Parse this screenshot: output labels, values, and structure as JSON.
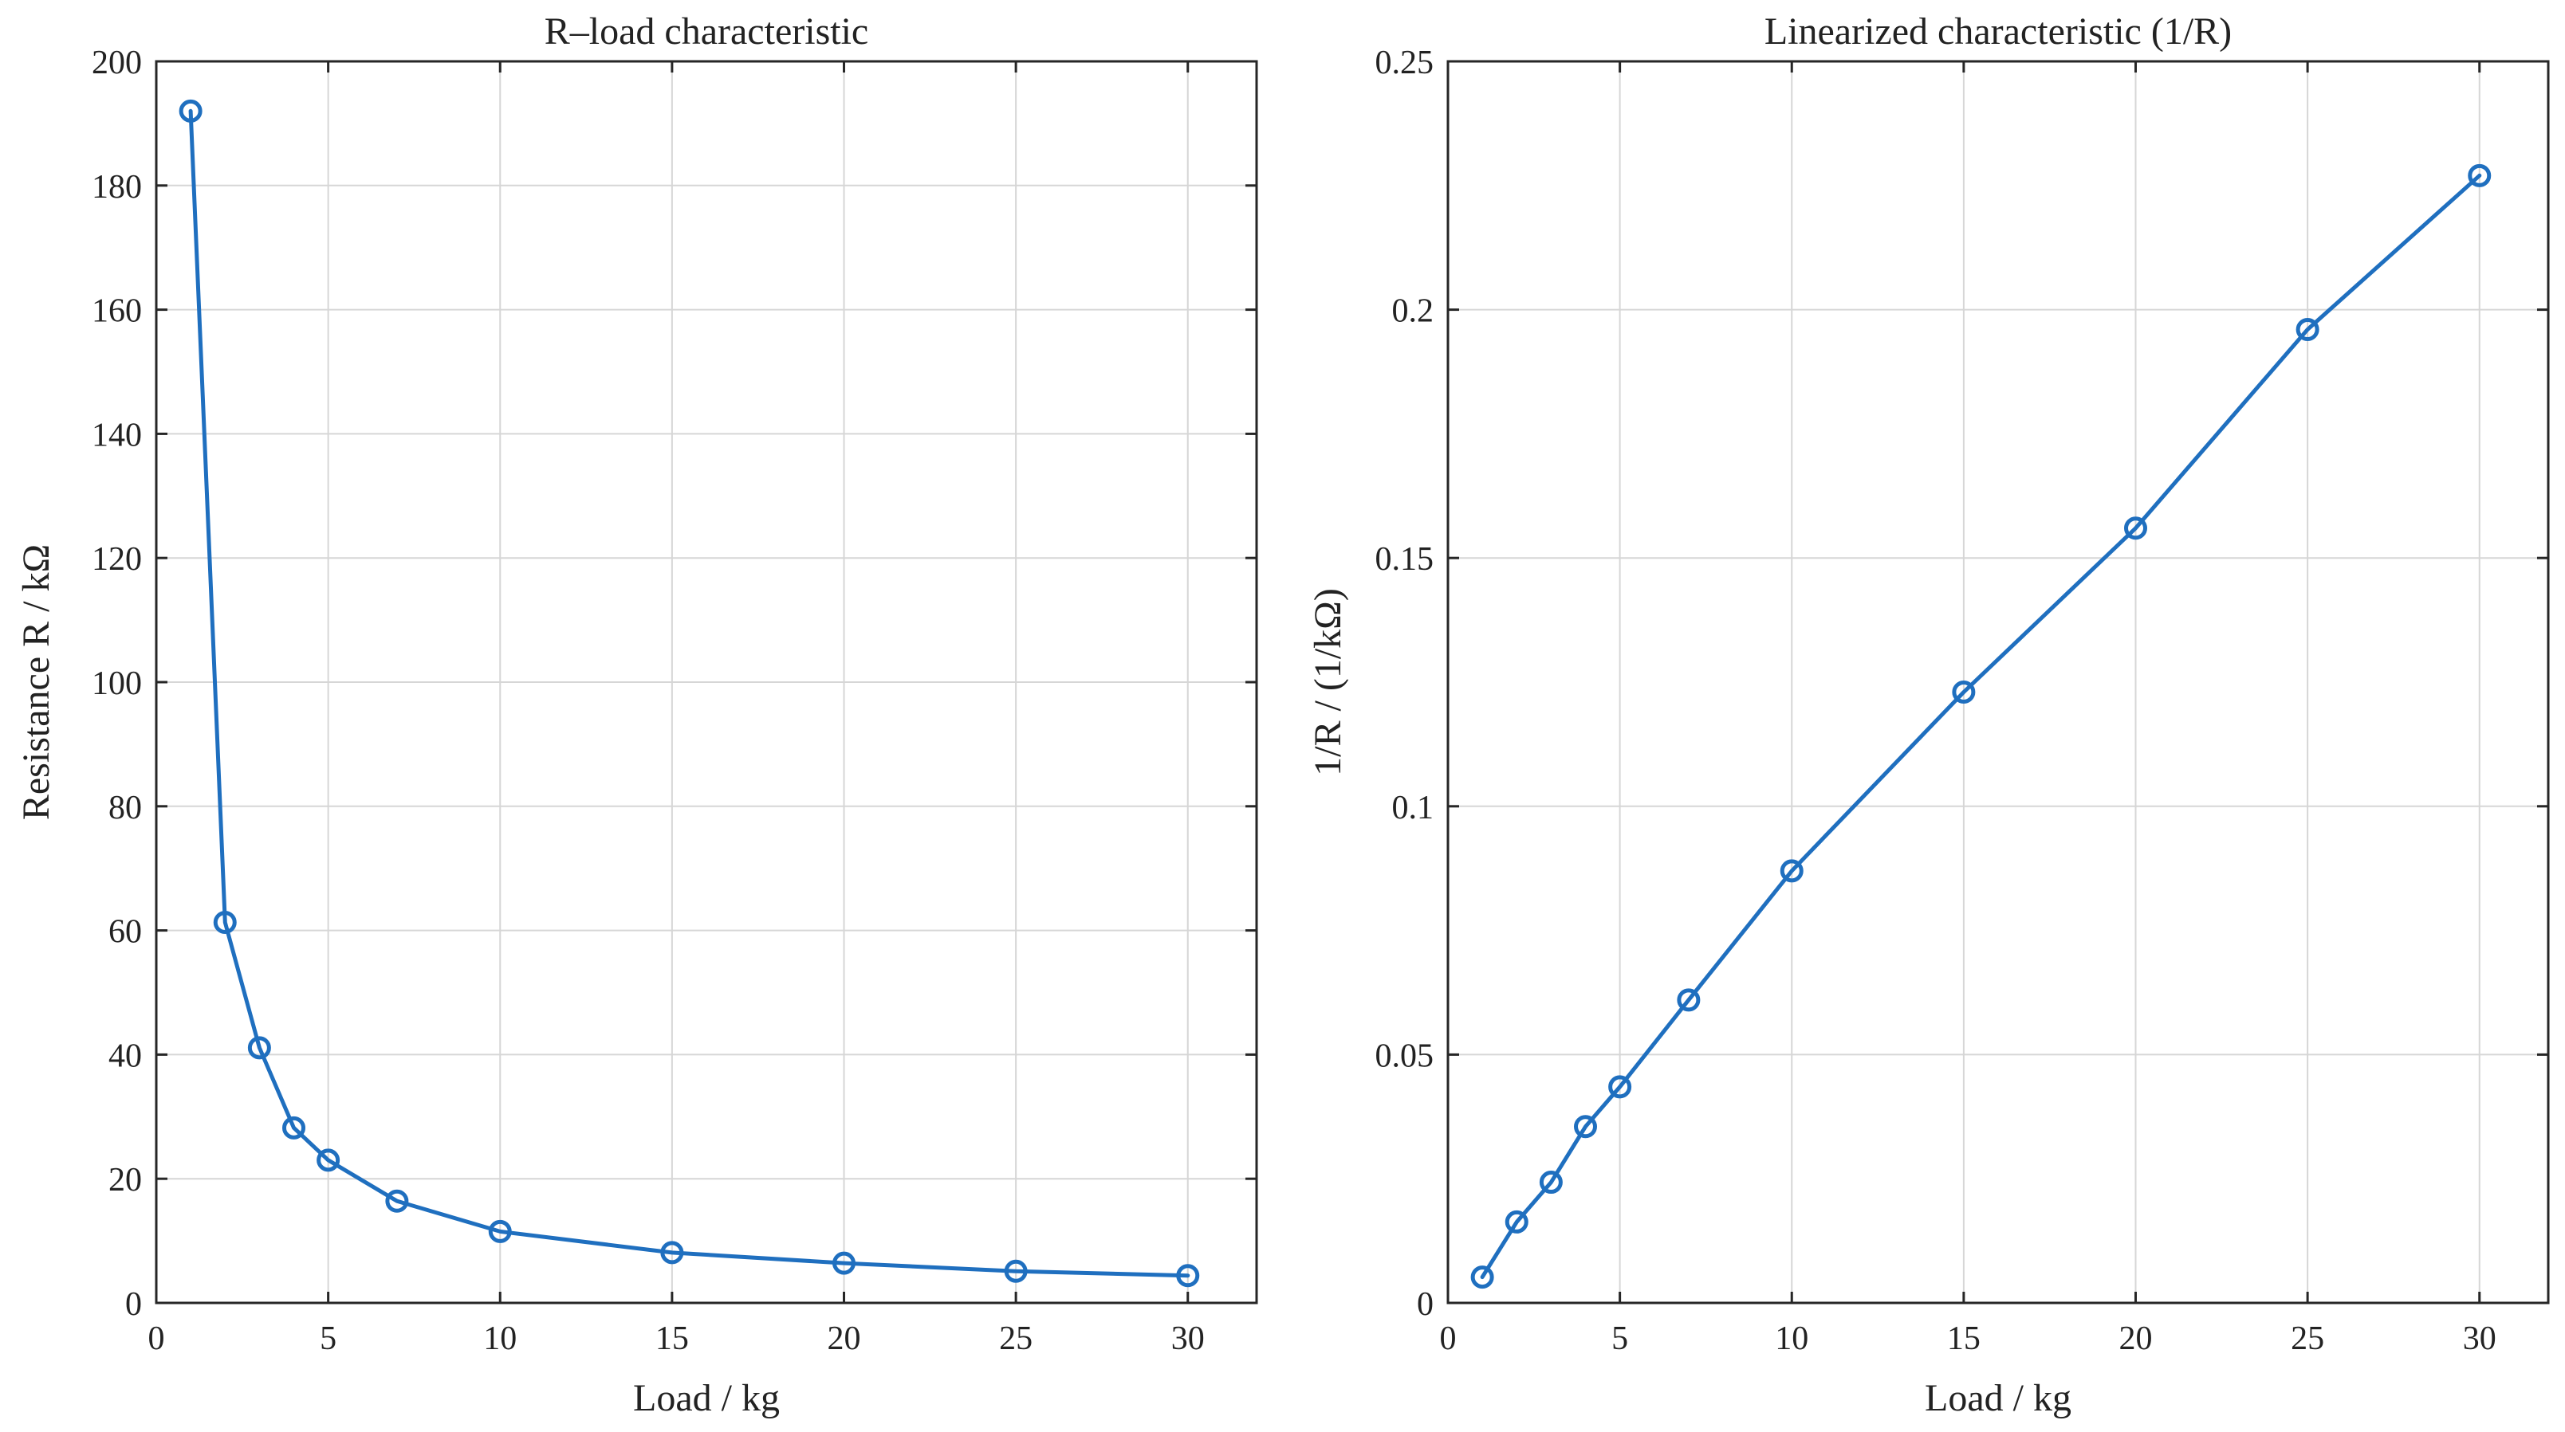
{
  "chart_data": [
    {
      "type": "line",
      "title": "R–load characteristic",
      "xlabel": "Load / kg",
      "ylabel": "Resistance  R  /  kΩ",
      "xlim": [
        0,
        32
      ],
      "ylim": [
        0,
        200
      ],
      "xticks": [
        0,
        5,
        10,
        15,
        20,
        25,
        30
      ],
      "yticks": [
        0,
        20,
        40,
        60,
        80,
        100,
        120,
        140,
        160,
        180,
        200
      ],
      "xtick_labels": [
        "0",
        "5",
        "10",
        "15",
        "20",
        "25",
        "30"
      ],
      "ytick_labels": [
        "0",
        "20",
        "40",
        "60",
        "80",
        "100",
        "120",
        "140",
        "160",
        "180",
        "200"
      ],
      "grid": true,
      "color": "#1f6fbf",
      "marker": "circle",
      "x": [
        1,
        2,
        3,
        4,
        5,
        7,
        10,
        15,
        20,
        25,
        30
      ],
      "y": [
        192,
        61.3,
        41.1,
        28.2,
        23,
        16.4,
        11.5,
        8.1,
        6.4,
        5.1,
        4.4
      ]
    },
    {
      "type": "line",
      "title": "Linearized characteristic (1/R)",
      "xlabel": "Load / kg",
      "ylabel": "1/R  /  (1/kΩ)",
      "xlim": [
        0,
        32
      ],
      "ylim": [
        0,
        0.25
      ],
      "xticks": [
        0,
        5,
        10,
        15,
        20,
        25,
        30
      ],
      "yticks": [
        0,
        0.05,
        0.1,
        0.15,
        0.2,
        0.25
      ],
      "xtick_labels": [
        "0",
        "5",
        "10",
        "15",
        "20",
        "25",
        "30"
      ],
      "ytick_labels": [
        "0",
        "0.05",
        "0.1",
        "0.15",
        "0.2",
        "0.25"
      ],
      "grid": true,
      "color": "#1f6fbf",
      "marker": "circle",
      "x": [
        1,
        2,
        3,
        4,
        5,
        7,
        10,
        15,
        20,
        25,
        30
      ],
      "y": [
        0.0052,
        0.0163,
        0.0243,
        0.0355,
        0.0435,
        0.061,
        0.087,
        0.123,
        0.156,
        0.196,
        0.227
      ]
    }
  ]
}
